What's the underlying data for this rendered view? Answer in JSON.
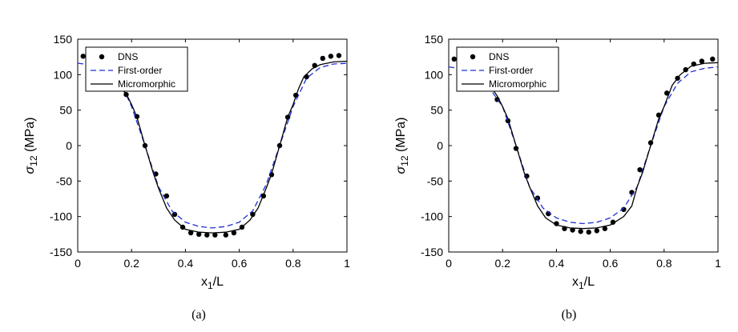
{
  "chart_data": [
    {
      "type": "scatter",
      "panel_label": "(a)",
      "xlabel": "x",
      "xlabel_sub": "1",
      "xlabel_suffix": "/L",
      "ylabel": "σ",
      "ylabel_sub": "12",
      "ylabel_suffix": " (MPa)",
      "xlim": [
        0,
        1
      ],
      "ylim": [
        -150,
        150
      ],
      "xticks": [
        0,
        0.2,
        0.4,
        0.6,
        0.8,
        1
      ],
      "xtick_labels": [
        "0",
        "0.2",
        "0.4",
        "0.6",
        "0.8",
        "1"
      ],
      "yticks": [
        -150,
        -100,
        -50,
        0,
        50,
        100,
        150
      ],
      "ytick_labels": [
        "-150",
        "-100",
        "-50",
        "0",
        "50",
        "100",
        "150"
      ],
      "grid": false,
      "legend_position": "top-left",
      "series": [
        {
          "name": "DNS",
          "style": "markers",
          "color": "#000000",
          "x": [
            0.02,
            0.18,
            0.22,
            0.25,
            0.29,
            0.33,
            0.36,
            0.39,
            0.42,
            0.45,
            0.48,
            0.51,
            0.55,
            0.58,
            0.61,
            0.65,
            0.69,
            0.72,
            0.75,
            0.78,
            0.81,
            0.85,
            0.88,
            0.91,
            0.94,
            0.97
          ],
          "y": [
            126,
            72,
            41,
            0,
            -40,
            -71,
            -97,
            -115,
            -123,
            -125,
            -126,
            -126,
            -126,
            -123,
            -115,
            -97,
            -71,
            -41,
            0,
            40,
            71,
            97,
            113,
            123,
            126,
            127
          ]
        },
        {
          "name": "First-order",
          "style": "dashed",
          "color": "#1f2fd6",
          "x": [
            0,
            0.05,
            0.1,
            0.15,
            0.18,
            0.2,
            0.25,
            0.3,
            0.35,
            0.4,
            0.45,
            0.5,
            0.55,
            0.6,
            0.65,
            0.7,
            0.75,
            0.8,
            0.85,
            0.9,
            0.95,
            1
          ],
          "y": [
            116,
            114,
            106,
            88,
            72,
            55,
            0,
            -58,
            -92,
            -108,
            -114,
            -116,
            -114,
            -108,
            -92,
            -55,
            0,
            55,
            95,
            110,
            115,
            116
          ]
        },
        {
          "name": "Micromorphic",
          "style": "solid",
          "color": "#000000",
          "x": [
            0.14,
            0.18,
            0.2,
            0.22,
            0.25,
            0.28,
            0.3,
            0.33,
            0.36,
            0.4,
            0.45,
            0.5,
            0.55,
            0.6,
            0.64,
            0.67,
            0.7,
            0.72,
            0.75,
            0.78,
            0.8,
            0.82,
            0.84,
            0.87,
            0.9,
            0.95,
            1
          ],
          "y": [
            90,
            73,
            58,
            40,
            0,
            -38,
            -60,
            -88,
            -105,
            -118,
            -122,
            -123,
            -122,
            -118,
            -105,
            -88,
            -60,
            -40,
            0,
            40,
            58,
            80,
            97,
            108,
            114,
            118,
            119
          ]
        }
      ]
    },
    {
      "type": "scatter",
      "panel_label": "(b)",
      "xlabel": "x",
      "xlabel_sub": "1",
      "xlabel_suffix": "/L",
      "ylabel": "σ",
      "ylabel_sub": "12",
      "ylabel_suffix": " (MPa)",
      "xlim": [
        0,
        1
      ],
      "ylim": [
        -150,
        150
      ],
      "xticks": [
        0,
        0.2,
        0.4,
        0.6,
        0.8,
        1
      ],
      "xtick_labels": [
        "0",
        "0.2",
        "0.4",
        "0.6",
        "0.8",
        "1"
      ],
      "yticks": [
        -150,
        -100,
        -50,
        0,
        50,
        100,
        150
      ],
      "ytick_labels": [
        "-150",
        "-100",
        "-50",
        "0",
        "50",
        "100",
        "150"
      ],
      "grid": false,
      "legend_position": "top-left",
      "series": [
        {
          "name": "DNS",
          "style": "markers",
          "color": "#000000",
          "x": [
            0.02,
            0.18,
            0.22,
            0.25,
            0.29,
            0.33,
            0.37,
            0.4,
            0.43,
            0.46,
            0.49,
            0.52,
            0.55,
            0.58,
            0.61,
            0.65,
            0.68,
            0.71,
            0.75,
            0.78,
            0.81,
            0.85,
            0.88,
            0.91,
            0.94,
            0.98
          ],
          "y": [
            122,
            65,
            35,
            -4,
            -43,
            -74,
            -96,
            -110,
            -117,
            -119,
            -121,
            -122,
            -120,
            -117,
            -108,
            -90,
            -66,
            -34,
            4,
            43,
            74,
            95,
            107,
            115,
            119,
            122
          ]
        },
        {
          "name": "First-order",
          "style": "dashed",
          "color": "#1f2fd6",
          "x": [
            0,
            0.05,
            0.1,
            0.15,
            0.2,
            0.25,
            0.3,
            0.35,
            0.4,
            0.45,
            0.5,
            0.55,
            0.6,
            0.65,
            0.7,
            0.75,
            0.8,
            0.85,
            0.9,
            0.95,
            1
          ],
          "y": [
            111,
            108,
            100,
            82,
            55,
            0,
            -58,
            -88,
            -102,
            -108,
            -110,
            -108,
            -102,
            -88,
            -58,
            0,
            55,
            88,
            104,
            109,
            111
          ]
        },
        {
          "name": "Micromorphic",
          "style": "solid",
          "color": "#000000",
          "x": [
            0.14,
            0.18,
            0.2,
            0.22,
            0.25,
            0.28,
            0.3,
            0.33,
            0.36,
            0.4,
            0.45,
            0.5,
            0.55,
            0.6,
            0.65,
            0.68,
            0.7,
            0.72,
            0.75,
            0.78,
            0.8,
            0.83,
            0.86,
            0.9,
            0.95,
            1
          ],
          "y": [
            92,
            70,
            55,
            38,
            0,
            -38,
            -58,
            -85,
            -102,
            -112,
            -116,
            -117,
            -116,
            -112,
            -100,
            -85,
            -58,
            -38,
            0,
            38,
            55,
            85,
            100,
            112,
            116,
            117
          ]
        }
      ]
    }
  ]
}
